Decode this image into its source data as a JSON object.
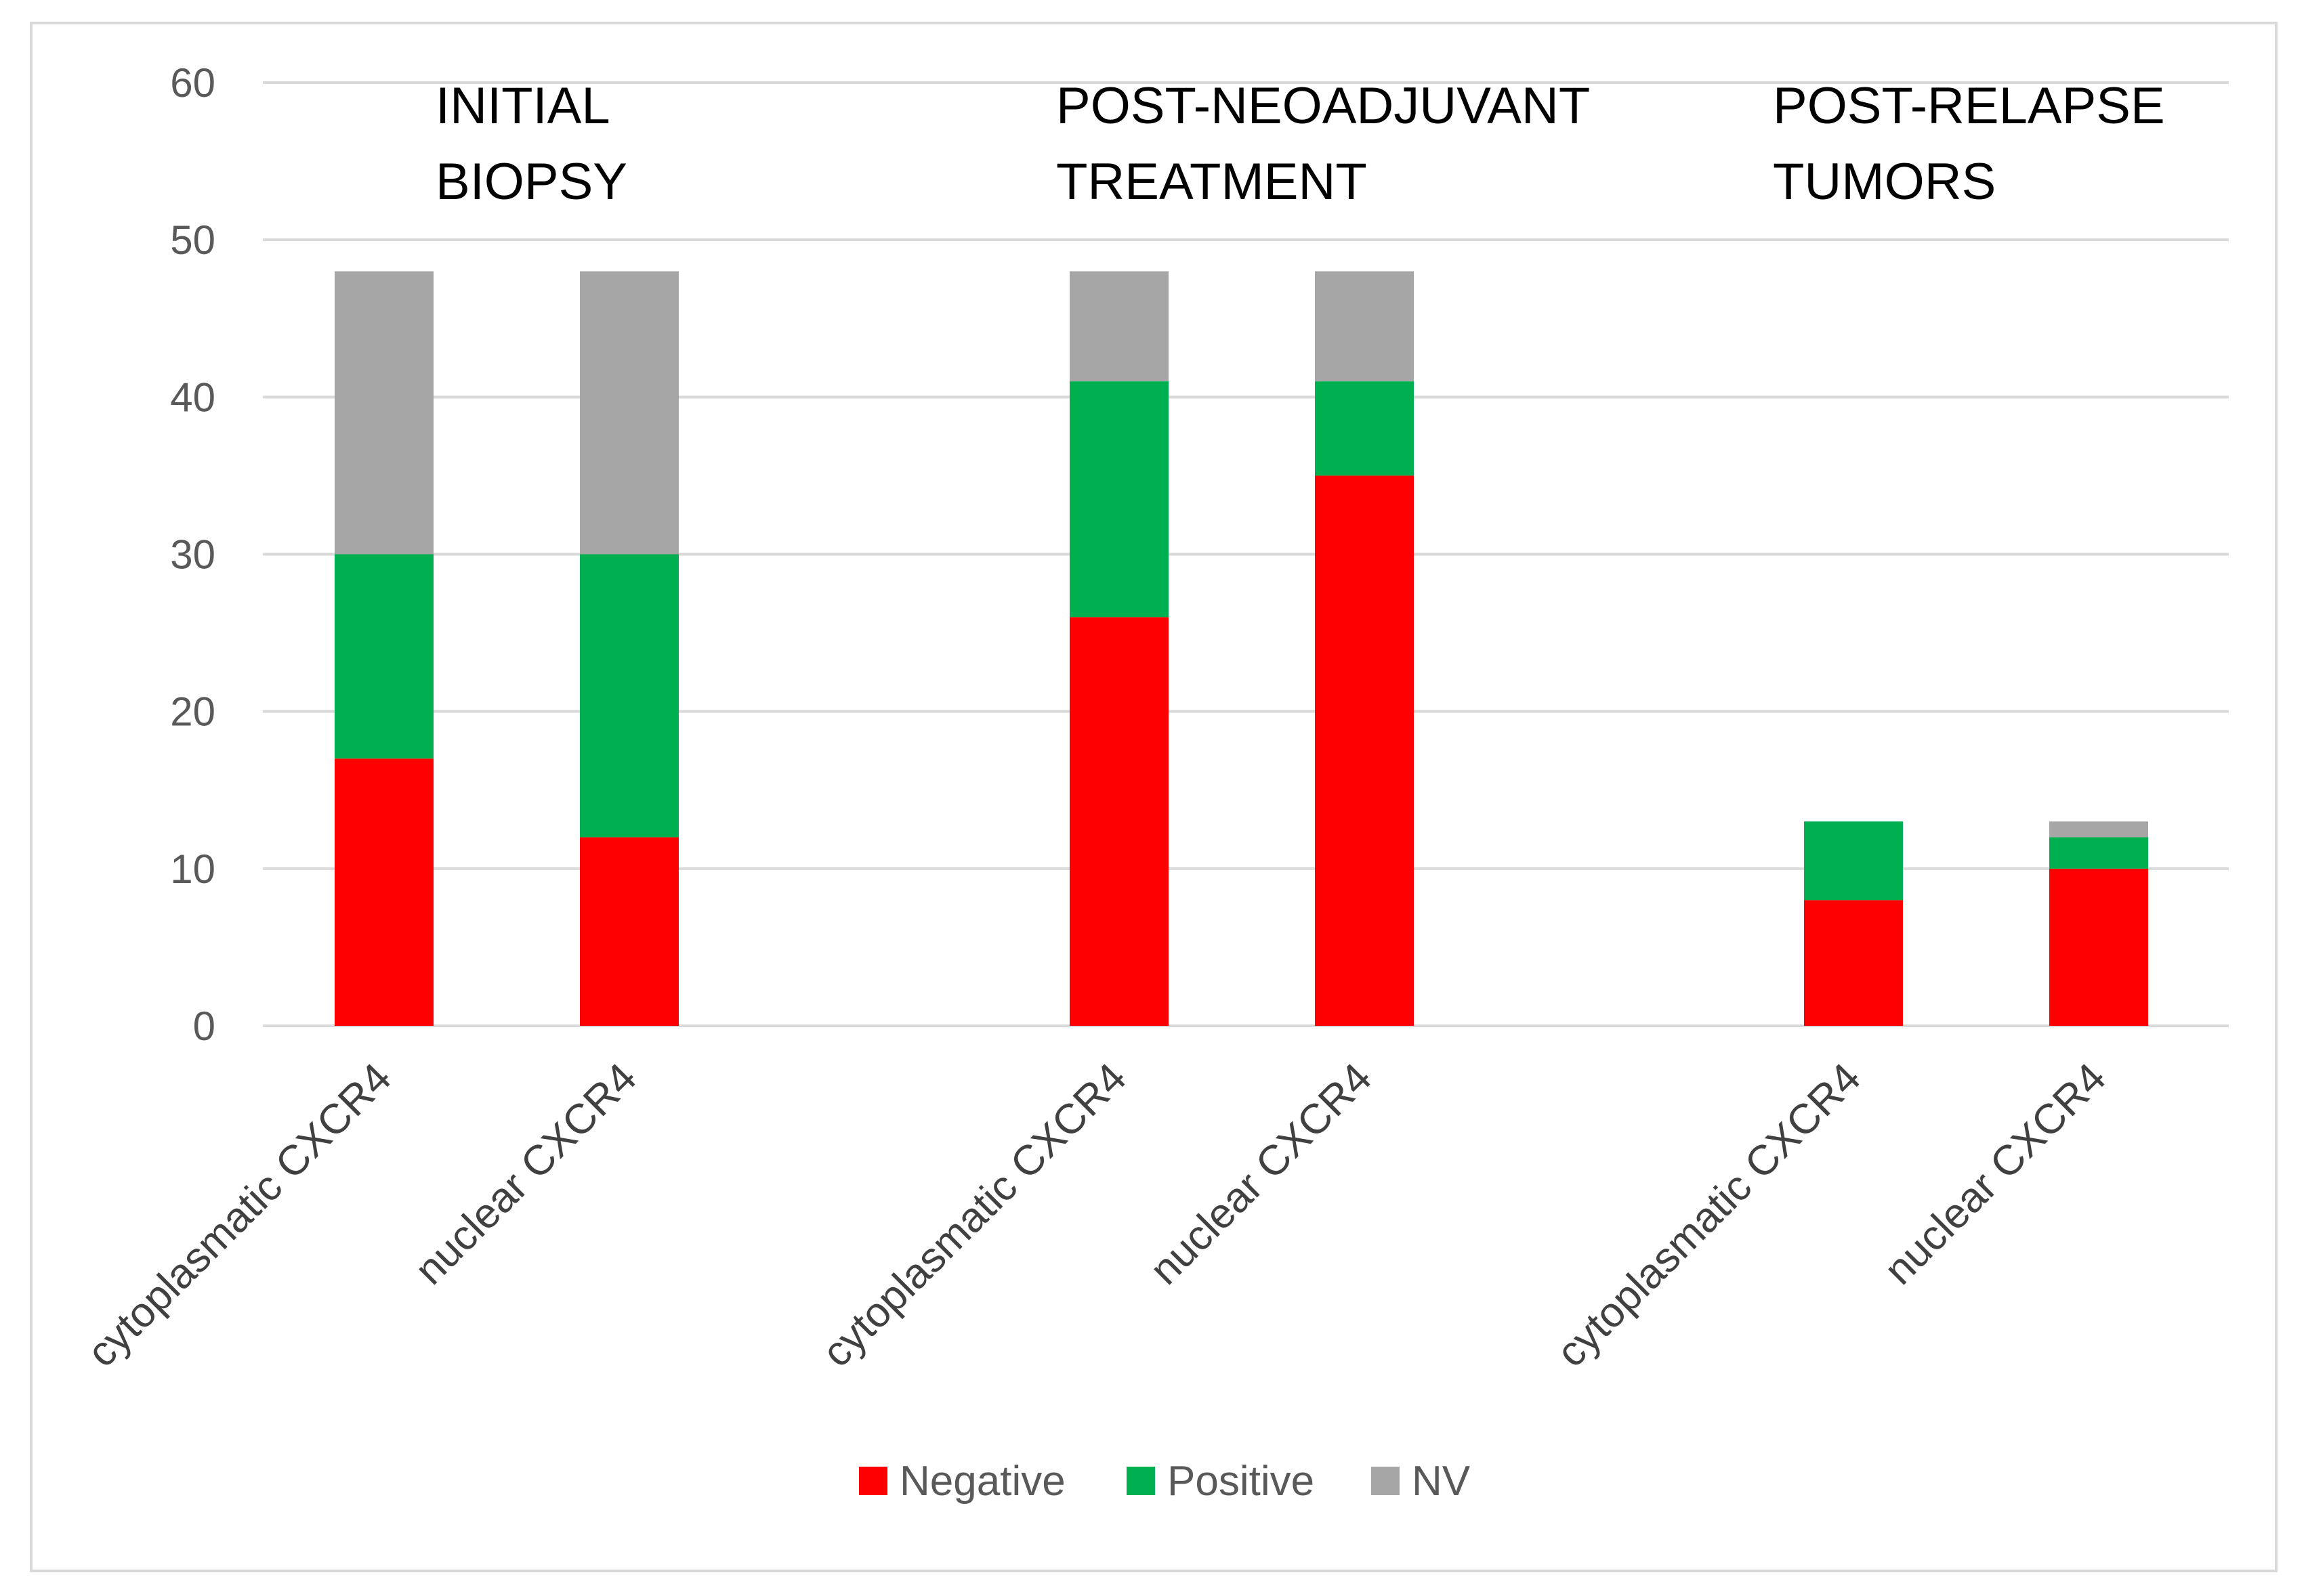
{
  "chart_data": {
    "type": "bar",
    "stacked": true,
    "title": "",
    "xlabel": "",
    "ylabel": "",
    "ylim": [
      0,
      60
    ],
    "yticks": [
      0,
      10,
      20,
      30,
      40,
      50,
      60
    ],
    "grid": true,
    "legend_position": "bottom",
    "groups": [
      {
        "label_lines": [
          "INITIAL",
          "BIOPSY"
        ],
        "categories": [
          "cytoplasmatic CXCR4",
          "nuclear CXCR4"
        ]
      },
      {
        "label_lines": [
          "POST-NEOADJUVANT",
          "TREATMENT"
        ],
        "categories": [
          "cytoplasmatic CXCR4",
          "nuclear CXCR4"
        ]
      },
      {
        "label_lines": [
          "POST-RELAPSE",
          "TUMORS"
        ],
        "categories": [
          "cytoplasmatic CXCR4",
          "nuclear CXCR4"
        ]
      }
    ],
    "categories": [
      "cytoplasmatic CXCR4",
      "nuclear CXCR4",
      "cytoplasmatic CXCR4",
      "nuclear CXCR4",
      "cytoplasmatic CXCR4",
      "nuclear CXCR4"
    ],
    "series": [
      {
        "name": "Negative",
        "color": "#ff0000",
        "values": [
          17,
          12,
          26,
          35,
          8,
          10
        ]
      },
      {
        "name": "Positive",
        "color": "#00b050",
        "values": [
          13,
          18,
          15,
          6,
          5,
          2
        ]
      },
      {
        "name": "NV",
        "color": "#a6a6a6",
        "values": [
          18,
          18,
          7,
          7,
          0,
          1
        ]
      }
    ]
  }
}
